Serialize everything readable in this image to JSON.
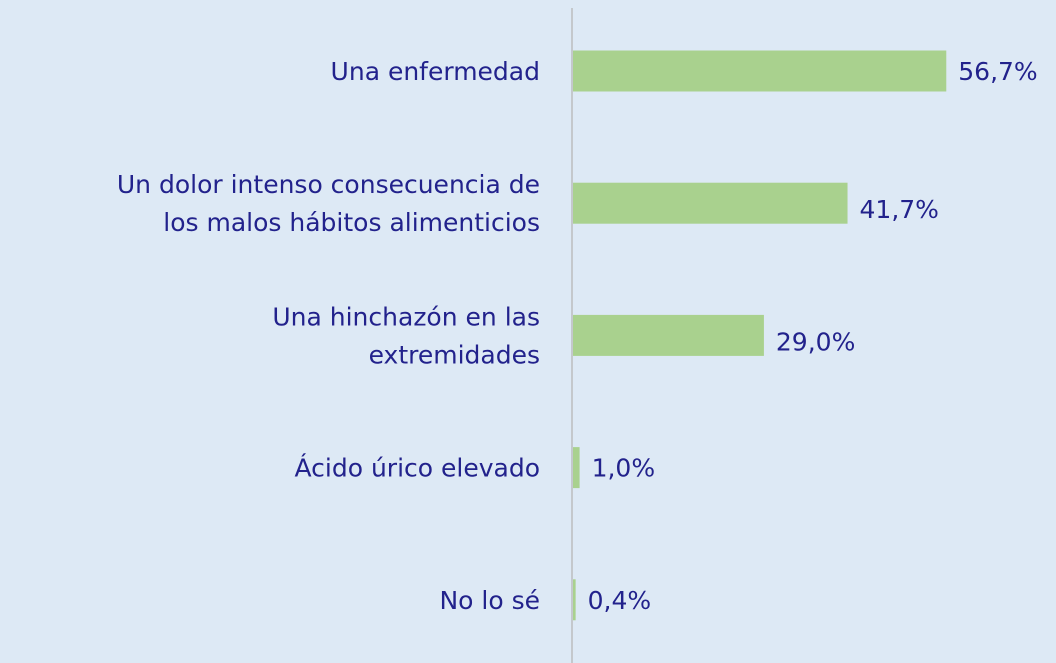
{
  "chart_data": {
    "type": "barh",
    "categories": [
      [
        "Una enfermedad"
      ],
      [
        "Un dolor intenso consecuencia de",
        "los malos hábitos alimenticios"
      ],
      [
        "Una hinchazón en las",
        "extremidades"
      ],
      [
        "Ácido úrico elevado"
      ],
      [
        "No lo sé"
      ]
    ],
    "values": [
      56.7,
      41.7,
      29.0,
      1.0,
      0.4
    ],
    "value_labels": [
      "56,7%",
      "41,7%",
      "29,0%",
      "1,0%",
      "0,4%"
    ],
    "color": "#a9d18e",
    "xlim": [
      0,
      60
    ]
  }
}
